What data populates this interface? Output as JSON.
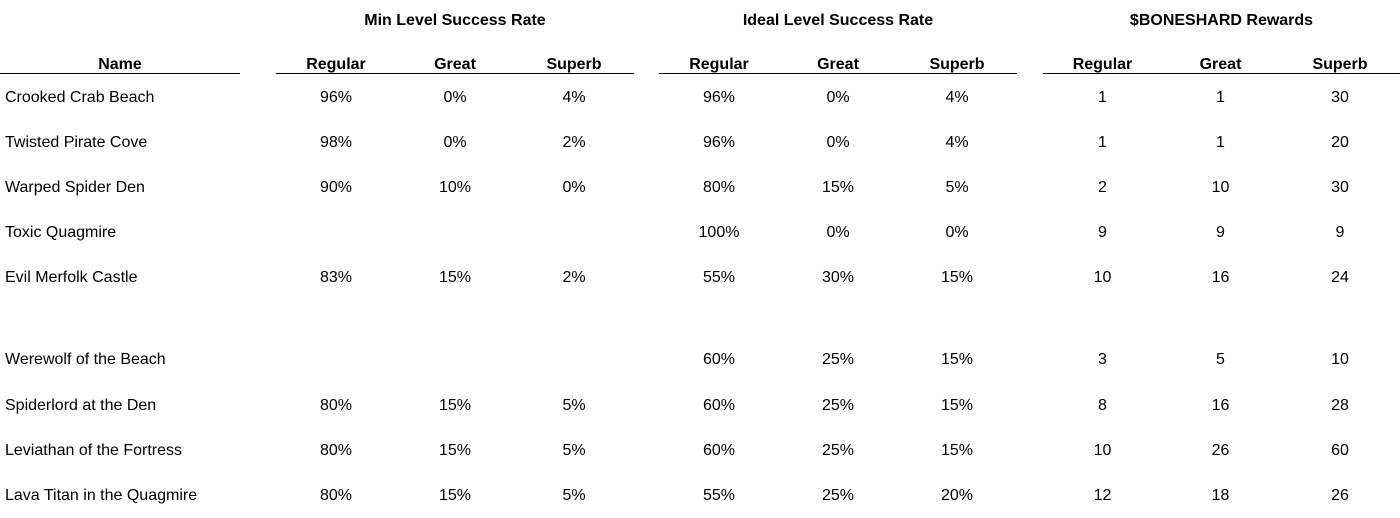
{
  "groups": [
    {
      "title": "Min Level Success Rate"
    },
    {
      "title": "Ideal Level Success Rate"
    },
    {
      "title": "$BONESHARD Rewards"
    }
  ],
  "name_header": "Name",
  "sub_headers": [
    "Regular",
    "Great",
    "Superb"
  ],
  "rows": [
    {
      "name": "Crooked Crab Beach",
      "min": [
        "96%",
        "0%",
        "4%"
      ],
      "ideal": [
        "96%",
        "0%",
        "4%"
      ],
      "rewards": [
        "1",
        "1",
        "30"
      ]
    },
    {
      "name": "Twisted Pirate Cove",
      "min": [
        "98%",
        "0%",
        "2%"
      ],
      "ideal": [
        "96%",
        "0%",
        "4%"
      ],
      "rewards": [
        "1",
        "1",
        "20"
      ]
    },
    {
      "name": "Warped Spider Den",
      "min": [
        "90%",
        "10%",
        "0%"
      ],
      "ideal": [
        "80%",
        "15%",
        "5%"
      ],
      "rewards": [
        "2",
        "10",
        "30"
      ]
    },
    {
      "name": "Toxic Quagmire",
      "min": [
        "",
        "",
        ""
      ],
      "ideal": [
        "100%",
        "0%",
        "0%"
      ],
      "rewards": [
        "9",
        "9",
        "9"
      ]
    },
    {
      "name": "Evil Merfolk Castle",
      "min": [
        "83%",
        "15%",
        "2%"
      ],
      "ideal": [
        "55%",
        "30%",
        "15%"
      ],
      "rewards": [
        "10",
        "16",
        "24"
      ]
    },
    {
      "name": "Werewolf of the Beach",
      "min": [
        "",
        "",
        ""
      ],
      "ideal": [
        "60%",
        "25%",
        "15%"
      ],
      "rewards": [
        "3",
        "5",
        "10"
      ]
    },
    {
      "name": "Spiderlord at the Den",
      "min": [
        "80%",
        "15%",
        "5%"
      ],
      "ideal": [
        "60%",
        "25%",
        "15%"
      ],
      "rewards": [
        "8",
        "16",
        "28"
      ]
    },
    {
      "name": "Leviathan of the Fortress",
      "min": [
        "80%",
        "15%",
        "5%"
      ],
      "ideal": [
        "60%",
        "25%",
        "15%"
      ],
      "rewards": [
        "10",
        "26",
        "60"
      ]
    },
    {
      "name": "Lava Titan in the Quagmire",
      "min": [
        "80%",
        "15%",
        "5%"
      ],
      "ideal": [
        "55%",
        "25%",
        "20%"
      ],
      "rewards": [
        "12",
        "18",
        "26"
      ]
    }
  ]
}
